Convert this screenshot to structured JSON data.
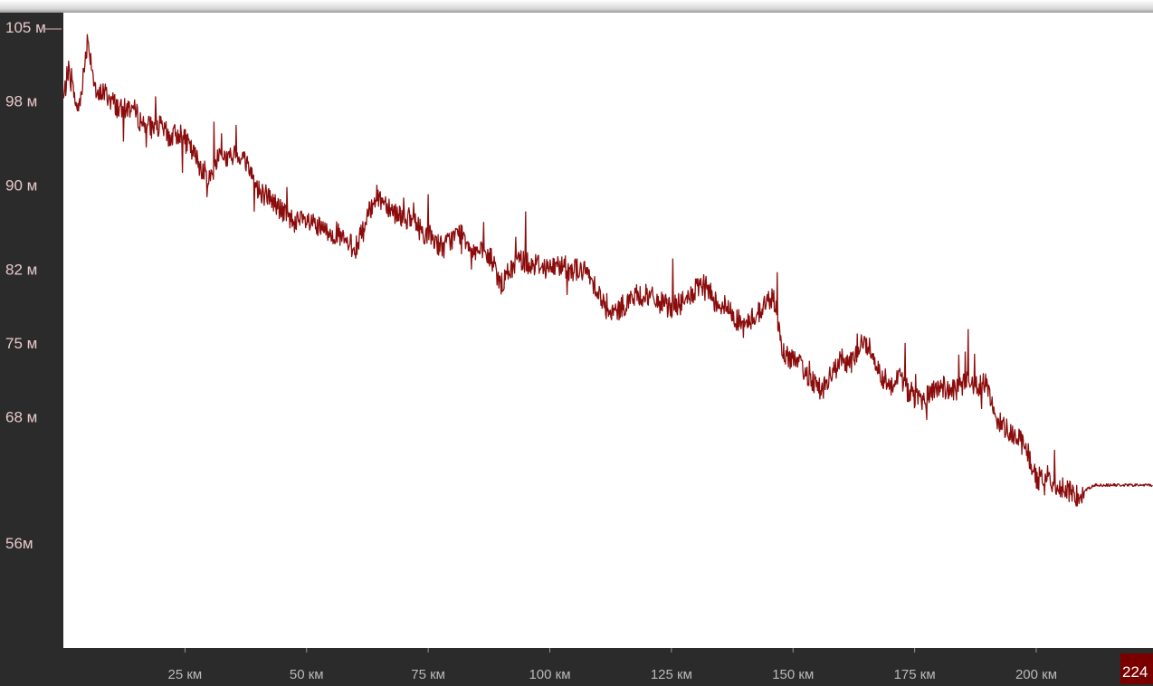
{
  "chart_data": {
    "type": "line",
    "title": "",
    "xlabel": "",
    "ylabel": "",
    "x_unit": "км",
    "y_unit": "м",
    "xlim": [
      0,
      224
    ],
    "ylim": [
      48,
      105
    ],
    "grid": false,
    "legend": "none",
    "colors": {
      "line": "#8b0c0c",
      "end_label_bg": "#7a0000",
      "frame": "#2b2b2b"
    },
    "y_ticks": [
      {
        "value": 105,
        "label": "105 м"
      },
      {
        "value": 98,
        "label": "98 м"
      },
      {
        "value": 90,
        "label": "90 м"
      },
      {
        "value": 82,
        "label": "82 м"
      },
      {
        "value": 75,
        "label": "75 м"
      },
      {
        "value": 68,
        "label": "68 м"
      },
      {
        "value": 56,
        "label": "56м"
      }
    ],
    "x_ticks": [
      {
        "value": 25,
        "label": "25 км"
      },
      {
        "value": 50,
        "label": "50 км"
      },
      {
        "value": 75,
        "label": "75 км"
      },
      {
        "value": 100,
        "label": "100 км"
      },
      {
        "value": 125,
        "label": "125 км"
      },
      {
        "value": 150,
        "label": "150 км"
      },
      {
        "value": 175,
        "label": "175 км"
      },
      {
        "value": 200,
        "label": "200 км"
      }
    ],
    "end_label": {
      "value": 224,
      "label": "224 км"
    },
    "series": [
      {
        "x": [
          0,
          1,
          2,
          3,
          4,
          5,
          6,
          7,
          8,
          10,
          12,
          14,
          16,
          18,
          20,
          22,
          24,
          26,
          28,
          30,
          32,
          34,
          36,
          38,
          40,
          42,
          44,
          46,
          48,
          50,
          52,
          54,
          56,
          58,
          60,
          62,
          64,
          66,
          68,
          70,
          72,
          74,
          76,
          78,
          80,
          82,
          84,
          86,
          88,
          90,
          92,
          94,
          96,
          98,
          100,
          102,
          104,
          106,
          108,
          110,
          112,
          114,
          116,
          118,
          120,
          122,
          124,
          126,
          128,
          130,
          132,
          134,
          136,
          138,
          140,
          142,
          144,
          146,
          148,
          150,
          152,
          154,
          156,
          158,
          160,
          162,
          164,
          166,
          168,
          170,
          172,
          174,
          176,
          178,
          180,
          182,
          184,
          186,
          188,
          190,
          192,
          194,
          196,
          198,
          200,
          202,
          204,
          206,
          208,
          210,
          212,
          214,
          216,
          218,
          220,
          222,
          224
        ],
        "y": [
          98,
          101,
          99,
          97,
          100,
          104,
          101,
          98,
          99,
          98,
          97,
          97.5,
          96,
          95.5,
          95.5,
          94.5,
          95,
          93.5,
          92,
          90.5,
          93,
          92.5,
          93,
          92,
          89.5,
          89,
          88,
          87,
          86.5,
          86.5,
          86,
          85.5,
          85.5,
          84.5,
          84,
          86,
          89,
          88.5,
          87.5,
          87,
          86.5,
          85.5,
          85,
          84,
          85,
          85.5,
          84,
          83.5,
          83,
          80.5,
          82,
          83,
          82.5,
          82.5,
          82,
          82.5,
          82,
          82,
          81.5,
          80,
          77.5,
          78,
          79,
          79.5,
          79.5,
          79,
          78.5,
          78.5,
          79,
          80,
          80.5,
          79,
          78.5,
          77.5,
          76.5,
          77.5,
          78.5,
          79.5,
          74,
          73.5,
          72.5,
          71.5,
          70.5,
          72,
          73.5,
          73,
          75,
          74.5,
          72,
          71,
          72,
          70,
          69.5,
          70,
          71,
          70.5,
          70.5,
          71.5,
          71,
          71,
          67.5,
          67,
          66,
          65,
          62,
          62.5,
          61.5,
          61,
          60.5,
          61,
          61.5,
          61.5,
          61.5,
          61.5,
          61.5,
          61.5,
          61.5
        ]
      }
    ]
  }
}
